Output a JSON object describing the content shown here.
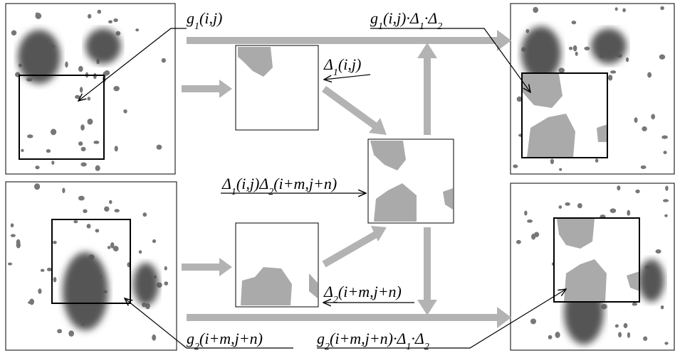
{
  "labels": [
    {
      "parts": [
        "g",
        "1",
        "(i,j)"
      ]
    },
    {
      "parts": [
        "g",
        "1",
        "(i,j)",
        "·Δ",
        "1",
        "·Δ",
        "2"
      ]
    },
    {
      "parts": [
        "Δ",
        "1",
        "(i,j)"
      ]
    },
    {
      "parts": [
        "Δ",
        "1",
        "(i,j)",
        "Δ",
        "2",
        "(i+m,j+n)"
      ]
    },
    {
      "parts": [
        "Δ",
        "2",
        "(i+m,j+n)"
      ]
    },
    {
      "parts": [
        "g",
        "2",
        "(i+m,j+n)"
      ]
    },
    {
      "parts": [
        "g",
        "2",
        "(i+m,j+n)",
        "·Δ",
        "1",
        "·Δ",
        "2"
      ]
    }
  ]
}
